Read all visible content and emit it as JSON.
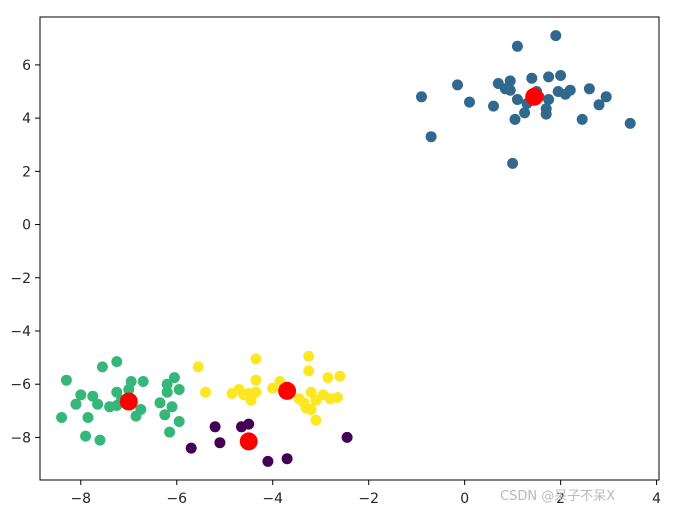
{
  "chart_data": {
    "type": "scatter",
    "title": "",
    "xlabel": "",
    "ylabel": "",
    "xlim": [
      -8.85,
      4.05
    ],
    "ylim": [
      -9.6,
      7.8
    ],
    "x_ticks": [
      -8,
      -6,
      -4,
      -2,
      0,
      2,
      4
    ],
    "x_tick_labels": [
      "−8",
      "−6",
      "−4",
      "−2",
      "0",
      "2",
      "4"
    ],
    "y_ticks": [
      -8,
      -6,
      -4,
      -2,
      0,
      2,
      4,
      6
    ],
    "y_tick_labels": [
      "−8",
      "−6",
      "−4",
      "−2",
      "0",
      "2",
      "4",
      "6"
    ],
    "grid": false,
    "series": [
      {
        "color": "#31688e",
        "points": [
          [
            1.1,
            6.7
          ],
          [
            1.9,
            7.1
          ],
          [
            -0.15,
            5.25
          ],
          [
            0.7,
            5.3
          ],
          [
            0.95,
            5.4
          ],
          [
            1.4,
            5.5
          ],
          [
            1.75,
            5.55
          ],
          [
            2.0,
            5.6
          ],
          [
            -0.9,
            4.8
          ],
          [
            0.1,
            4.6
          ],
          [
            0.6,
            4.45
          ],
          [
            0.95,
            5.05
          ],
          [
            1.1,
            4.7
          ],
          [
            1.3,
            4.55
          ],
          [
            1.55,
            4.8
          ],
          [
            1.7,
            4.35
          ],
          [
            1.75,
            4.7
          ],
          [
            1.7,
            4.15
          ],
          [
            1.95,
            5.0
          ],
          [
            2.1,
            4.9
          ],
          [
            2.2,
            5.05
          ],
          [
            2.6,
            5.1
          ],
          [
            2.8,
            4.5
          ],
          [
            2.95,
            4.8
          ],
          [
            1.25,
            4.2
          ],
          [
            1.05,
            3.95
          ],
          [
            2.45,
            3.95
          ],
          [
            -0.7,
            3.3
          ],
          [
            1.0,
            2.3
          ],
          [
            3.45,
            3.8
          ],
          [
            0.85,
            5.1
          ],
          [
            1.5,
            5.0
          ]
        ]
      },
      {
        "color": "#35b779",
        "points": [
          [
            -8.3,
            -5.85
          ],
          [
            -7.55,
            -5.35
          ],
          [
            -7.25,
            -5.15
          ],
          [
            -6.05,
            -5.75
          ],
          [
            -8.0,
            -6.4
          ],
          [
            -7.75,
            -6.45
          ],
          [
            -7.65,
            -6.75
          ],
          [
            -7.25,
            -6.3
          ],
          [
            -6.95,
            -5.9
          ],
          [
            -6.7,
            -5.9
          ],
          [
            -6.2,
            -6.3
          ],
          [
            -5.95,
            -6.2
          ],
          [
            -7.25,
            -6.8
          ],
          [
            -8.4,
            -7.25
          ],
          [
            -8.1,
            -6.75
          ],
          [
            -7.85,
            -7.25
          ],
          [
            -7.15,
            -6.6
          ],
          [
            -7.0,
            -6.2
          ],
          [
            -6.85,
            -7.2
          ],
          [
            -6.75,
            -6.95
          ],
          [
            -6.35,
            -6.7
          ],
          [
            -6.25,
            -7.15
          ],
          [
            -6.1,
            -6.85
          ],
          [
            -5.95,
            -7.4
          ],
          [
            -6.15,
            -7.8
          ],
          [
            -7.9,
            -7.95
          ],
          [
            -7.6,
            -8.1
          ],
          [
            -6.2,
            -6.0
          ],
          [
            -7.4,
            -6.85
          ]
        ]
      },
      {
        "color": "#fde725",
        "points": [
          [
            -5.55,
            -5.35
          ],
          [
            -4.35,
            -5.05
          ],
          [
            -3.25,
            -4.95
          ],
          [
            -3.25,
            -5.5
          ],
          [
            -2.85,
            -5.75
          ],
          [
            -2.6,
            -5.7
          ],
          [
            -5.4,
            -6.3
          ],
          [
            -4.85,
            -6.35
          ],
          [
            -4.7,
            -6.2
          ],
          [
            -4.6,
            -6.4
          ],
          [
            -4.45,
            -6.6
          ],
          [
            -4.35,
            -6.3
          ],
          [
            -4.35,
            -5.85
          ],
          [
            -4.0,
            -6.15
          ],
          [
            -3.85,
            -5.9
          ],
          [
            -3.45,
            -6.55
          ],
          [
            -3.35,
            -6.7
          ],
          [
            -3.3,
            -6.9
          ],
          [
            -3.2,
            -6.3
          ],
          [
            -3.1,
            -6.6
          ],
          [
            -2.95,
            -6.4
          ],
          [
            -2.8,
            -6.55
          ],
          [
            -2.65,
            -6.5
          ],
          [
            -3.1,
            -7.35
          ],
          [
            -4.5,
            -6.35
          ],
          [
            -3.2,
            -6.95
          ]
        ]
      },
      {
        "color": "#440154",
        "points": [
          [
            -5.2,
            -7.6
          ],
          [
            -4.65,
            -7.6
          ],
          [
            -4.5,
            -7.5
          ],
          [
            -5.1,
            -8.2
          ],
          [
            -5.7,
            -8.4
          ],
          [
            -4.1,
            -8.9
          ],
          [
            -3.7,
            -8.8
          ],
          [
            -2.45,
            -8.0
          ]
        ]
      }
    ],
    "centroids": {
      "color": "#ff0000",
      "points": [
        [
          1.45,
          4.8
        ],
        [
          -7.0,
          -6.65
        ],
        [
          -3.7,
          -6.25
        ],
        [
          -4.5,
          -8.15
        ]
      ]
    }
  },
  "watermark": {
    "text": "CSDN @呆子不呆X"
  }
}
